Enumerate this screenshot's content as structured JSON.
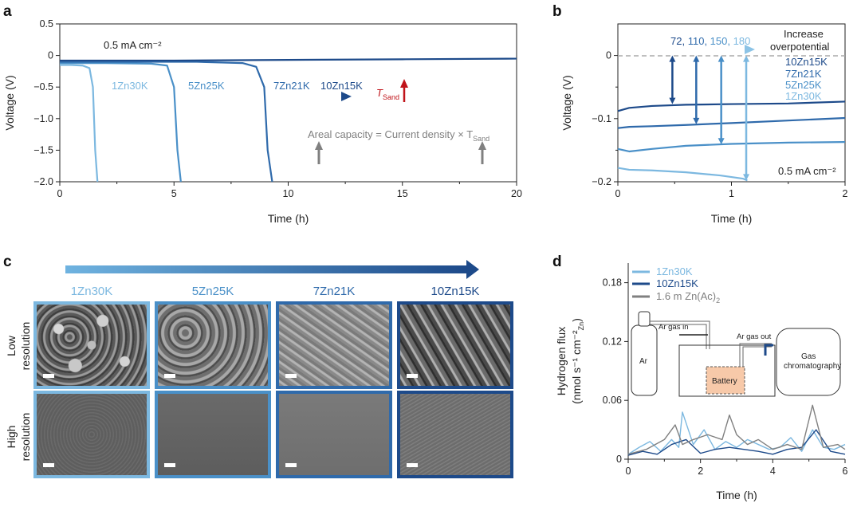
{
  "panels": {
    "a": {
      "letter": "a",
      "current_label": "0.5 mA cm⁻²",
      "arrow_labels": [
        "1Zn30K",
        "5Zn25K",
        "7Zn21K",
        "10Zn15K"
      ],
      "tsand_main": "T",
      "tsand_sub": "Sand",
      "areal_text": "Areal capacity = Current density × T",
      "areal_sub": "Sand",
      "xlabel": "Time (h)",
      "ylabel": "Voltage (V)",
      "xticks": [
        "0",
        "5",
        "10",
        "15",
        "20"
      ],
      "yticks": [
        "0.5",
        "0",
        "−0.5",
        "−1.0",
        "−1.5",
        "−2.0"
      ]
    },
    "b": {
      "letter": "b",
      "numbers": [
        "72",
        "110",
        "150",
        "180"
      ],
      "increase_line1": "Increase",
      "increase_line2": "overpotential",
      "legend": [
        "10Zn15K",
        "7Zn21K",
        "5Zn25K",
        "1Zn30K"
      ],
      "current_label": "0.5 mA cm⁻²",
      "xlabel": "Time (h)",
      "ylabel": "Voltage (V)",
      "xticks": [
        "0",
        "1",
        "2"
      ],
      "yticks": [
        "0",
        "−0.1",
        "−0.2"
      ]
    },
    "c": {
      "letter": "c",
      "samples": [
        "1Zn30K",
        "5Zn25K",
        "7Zn21K",
        "10Zn15K"
      ],
      "row_low": [
        "Low",
        "resolution"
      ],
      "row_high": [
        "High",
        "resolution"
      ]
    },
    "d": {
      "letter": "d",
      "legend": [
        "1Zn30K",
        "10Zn15K",
        "1.6 m Zn(Ac)"
      ],
      "legend_sub": "2",
      "schematic": {
        "ar": "Ar",
        "gas_in": "Ar gas in",
        "gas_out": "Ar gas out",
        "battery": "Battery",
        "gc_line1": "Gas",
        "gc_line2": "chromatography"
      },
      "xlabel": "Time (h)",
      "ylabel_line1": "Hydrogen flux",
      "ylabel_line2": "(nmol s⁻¹ cm⁻²",
      "ylabel_sub": "Zn",
      "ylabel_end": ")",
      "xticks": [
        "0",
        "2",
        "4",
        "6"
      ],
      "yticks": [
        "0",
        "0.06",
        "0.12",
        "0.18"
      ]
    }
  },
  "colors": {
    "c1": "#7cb8e0",
    "c5": "#4a90c8",
    "c7": "#2f6aab",
    "c10": "#1d4a8a",
    "gray": "#808080",
    "red": "#c0141a"
  },
  "chart_data": [
    {
      "panel": "a",
      "type": "line",
      "xlabel": "Time (h)",
      "ylabel": "Voltage (V)",
      "xlim": [
        0,
        20
      ],
      "ylim": [
        -2.0,
        0.5
      ],
      "series": [
        {
          "name": "1Zn30K",
          "x": [
            0,
            0.5,
            1.0,
            1.3,
            1.45,
            1.55,
            1.65
          ],
          "y": [
            -0.15,
            -0.15,
            -0.16,
            -0.2,
            -0.5,
            -1.5,
            -2.0
          ]
        },
        {
          "name": "5Zn25K",
          "x": [
            0,
            2,
            4,
            4.7,
            5.0,
            5.15,
            5.3
          ],
          "y": [
            -0.12,
            -0.12,
            -0.13,
            -0.16,
            -0.5,
            -1.5,
            -2.0
          ]
        },
        {
          "name": "7Zn21K",
          "x": [
            0,
            3,
            6,
            8.0,
            8.6,
            8.95,
            9.1,
            9.3
          ],
          "y": [
            -0.1,
            -0.1,
            -0.1,
            -0.12,
            -0.18,
            -0.5,
            -1.5,
            -2.0
          ]
        },
        {
          "name": "10Zn15K",
          "x": [
            0,
            5,
            10,
            15,
            20
          ],
          "y": [
            -0.08,
            -0.08,
            -0.07,
            -0.06,
            -0.05
          ]
        }
      ]
    },
    {
      "panel": "b",
      "type": "line",
      "xlabel": "Time (h)",
      "ylabel": "Voltage (V)",
      "xlim": [
        0,
        2
      ],
      "ylim": [
        -0.2,
        0.01
      ],
      "series": [
        {
          "name": "10Zn15K",
          "x": [
            0,
            0.1,
            0.3,
            0.6,
            1.0,
            1.5,
            2.0
          ],
          "y": [
            -0.088,
            -0.083,
            -0.08,
            -0.078,
            -0.077,
            -0.076,
            -0.073
          ]
        },
        {
          "name": "7Zn21K",
          "x": [
            0,
            0.1,
            0.3,
            0.6,
            1.0,
            1.5,
            2.0
          ],
          "y": [
            -0.115,
            -0.113,
            -0.112,
            -0.11,
            -0.107,
            -0.103,
            -0.099
          ]
        },
        {
          "name": "5Zn25K",
          "x": [
            0,
            0.1,
            0.3,
            0.6,
            1.0,
            1.5,
            2.0
          ],
          "y": [
            -0.148,
            -0.152,
            -0.148,
            -0.143,
            -0.14,
            -0.138,
            -0.137
          ]
        },
        {
          "name": "1Zn30K",
          "x": [
            0,
            0.1,
            0.3,
            0.6,
            0.9,
            1.1,
            1.14
          ],
          "y": [
            -0.178,
            -0.181,
            -0.182,
            -0.185,
            -0.19,
            -0.195,
            -0.198
          ]
        }
      ],
      "overpotential_mV": [
        72,
        110,
        150,
        180
      ]
    },
    {
      "panel": "d",
      "type": "line",
      "xlabel": "Time (h)",
      "xlim": [
        0,
        6
      ],
      "ylim": [
        0,
        0.2
      ],
      "series": [
        {
          "name": "1Zn30K",
          "x": [
            0.0,
            0.3,
            0.6,
            0.9,
            1.2,
            1.4,
            1.5,
            1.8,
            2.1,
            2.4,
            2.7,
            3.0,
            3.3,
            3.6,
            3.9,
            4.2,
            4.5,
            4.8,
            5.1,
            5.4,
            5.7,
            6.0
          ],
          "y": [
            0.005,
            0.012,
            0.018,
            0.008,
            0.02,
            0.012,
            0.048,
            0.015,
            0.03,
            0.01,
            0.018,
            0.012,
            0.02,
            0.015,
            0.01,
            0.012,
            0.022,
            0.008,
            0.03,
            0.012,
            0.01,
            0.015
          ]
        },
        {
          "name": "10Zn15K",
          "x": [
            0.0,
            0.4,
            0.8,
            1.2,
            1.6,
            2.0,
            2.4,
            2.8,
            3.2,
            3.6,
            4.0,
            4.4,
            4.8,
            5.2,
            5.6,
            6.0
          ],
          "y": [
            0.004,
            0.008,
            0.005,
            0.015,
            0.02,
            0.006,
            0.01,
            0.012,
            0.01,
            0.008,
            0.005,
            0.01,
            0.012,
            0.03,
            0.008,
            0.005
          ]
        },
        {
          "name": "1.6 m Zn(Ac)2",
          "x": [
            0.0,
            0.5,
            1.0,
            1.3,
            1.5,
            1.8,
            2.2,
            2.6,
            2.8,
            3.0,
            3.3,
            3.6,
            4.0,
            4.4,
            4.8,
            5.1,
            5.4,
            5.8,
            6.0
          ],
          "y": [
            0.005,
            0.01,
            0.02,
            0.035,
            0.015,
            0.02,
            0.025,
            0.02,
            0.045,
            0.025,
            0.015,
            0.02,
            0.01,
            0.015,
            0.01,
            0.055,
            0.012,
            0.015,
            0.01
          ]
        }
      ]
    }
  ]
}
